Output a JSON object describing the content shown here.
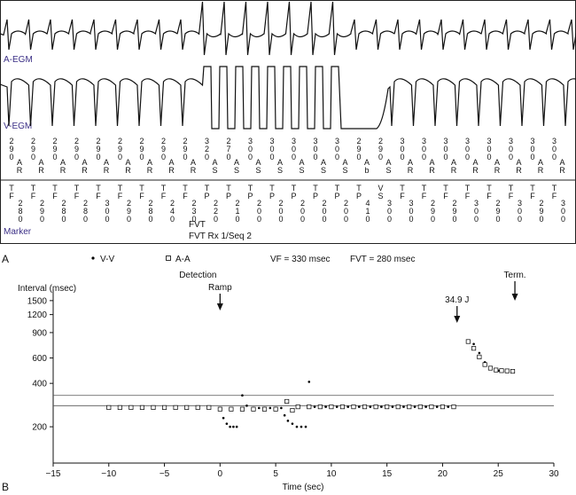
{
  "panel_a": {
    "a_egm_label": "A-EGM",
    "v_egm_label": "V-EGM",
    "marker_label": "Marker",
    "therapy_line_1": "FVT",
    "therapy_line_2": "FVT Rx 1/Seq 2",
    "panel_letter": "A",
    "atrial_intervals": [
      "290",
      "290",
      "290",
      "290",
      "290",
      "290",
      "290",
      "290",
      "290",
      "320",
      "270",
      "300",
      "300",
      "300",
      "300",
      "300",
      "290",
      "290",
      "300",
      "300",
      "300",
      "300",
      "300",
      "300",
      "300",
      "300"
    ],
    "atrial_markers": [
      "AR",
      "AR",
      "AR",
      "AR",
      "AR",
      "AR",
      "AR",
      "AR",
      "AR",
      "AS",
      "AS",
      "AS",
      "AS",
      "AS",
      "AS",
      "AS",
      "Ab",
      "AS",
      "AR",
      "AR",
      "AR",
      "AR",
      "AR",
      "AR",
      "AR",
      "AR"
    ],
    "ventricular_markers": [
      "TF",
      "TF",
      "TF",
      "TF",
      "TF",
      "TF",
      "TF",
      "TF",
      "TF",
      "TP",
      "TP",
      "TP",
      "TP",
      "TP",
      "TP",
      "TP",
      "TP",
      "VS",
      "TF",
      "TF",
      "TF",
      "TF",
      "TF",
      "TF",
      "TF",
      "TF"
    ],
    "ventricular_intervals": [
      "280",
      "290",
      "280",
      "280",
      "300",
      "290",
      "280",
      "240",
      "230",
      "220",
      "210",
      "200",
      "200",
      "200",
      "200",
      "200",
      "410",
      "300",
      "300",
      "290",
      "290",
      "300",
      "290",
      "300",
      "290",
      "300"
    ]
  },
  "chart_data": {
    "type": "scatter",
    "panel_letter": "B",
    "ylabel": "Interval (msec)",
    "xlabel": "Time (sec)",
    "log_y": true,
    "xlim": [
      -15,
      30
    ],
    "xticks": [
      {
        "value": -15,
        "label": "−15"
      },
      {
        "value": -10,
        "label": "−10"
      },
      {
        "value": -5,
        "label": "−5"
      },
      0,
      5,
      10,
      15,
      20,
      25,
      30
    ],
    "ylim": [
      112,
      1800
    ],
    "yticks": [
      200,
      400,
      600,
      900,
      1200,
      1500
    ],
    "reference_lines": [
      {
        "label": "VF = 330 msec",
        "value": 330
      },
      {
        "label": "FVT = 280 msec",
        "value": 280
      }
    ],
    "annotations": [
      {
        "label": "Detection",
        "sublabel": "Ramp",
        "x": 0
      },
      {
        "label": "34.9 J",
        "x": 21.3
      },
      {
        "label": "Term.",
        "x": 26.5
      }
    ],
    "series": [
      {
        "name": "V-V",
        "marker": "dot",
        "color": "#000000",
        "x": [
          -10,
          -9,
          -8,
          -7,
          -6,
          -5,
          -4,
          -3,
          -2,
          -1,
          0,
          0.3,
          0.6,
          0.9,
          1.2,
          1.5,
          2,
          2.4,
          3,
          3.5,
          4,
          4.5,
          5,
          5.5,
          5.8,
          6.1,
          6.5,
          6.9,
          7.3,
          7.7,
          8,
          8.5,
          9.5,
          10.5,
          11.5,
          12.5,
          13.5,
          14.5,
          15.5,
          16.5,
          17.5,
          18.5,
          19.5,
          20.5,
          22.8,
          23.3,
          23.8,
          24.3,
          25,
          25.7,
          26.4
        ],
        "values": [
          270,
          270,
          270,
          270,
          270,
          270,
          270,
          270,
          270,
          270,
          270,
          230,
          210,
          200,
          200,
          200,
          330,
          280,
          270,
          270,
          270,
          270,
          270,
          270,
          240,
          220,
          210,
          200,
          200,
          200,
          410,
          275,
          275,
          275,
          275,
          275,
          275,
          275,
          275,
          275,
          275,
          275,
          275,
          275,
          750,
          650,
          560,
          510,
          490,
          485,
          480
        ]
      },
      {
        "name": "A-A",
        "marker": "square",
        "color": "#000000",
        "x": [
          -10,
          -9,
          -8,
          -7,
          -6,
          -5,
          -4,
          -3,
          -2,
          -1,
          0,
          1,
          2,
          3,
          4,
          5,
          6,
          6.5,
          7,
          8,
          9,
          10,
          11,
          12,
          13,
          14,
          15,
          16,
          17,
          18,
          19,
          20,
          21,
          22.3,
          22.8,
          23.3,
          23.8,
          24.3,
          24.8,
          25.3,
          25.8,
          26.3
        ],
        "values": [
          272,
          272,
          272,
          272,
          272,
          272,
          272,
          272,
          272,
          272,
          265,
          265,
          265,
          265,
          265,
          265,
          300,
          260,
          275,
          275,
          275,
          275,
          275,
          275,
          275,
          275,
          275,
          275,
          275,
          275,
          275,
          275,
          275,
          780,
          700,
          610,
          540,
          510,
          495,
          490,
          488,
          485
        ]
      }
    ]
  }
}
